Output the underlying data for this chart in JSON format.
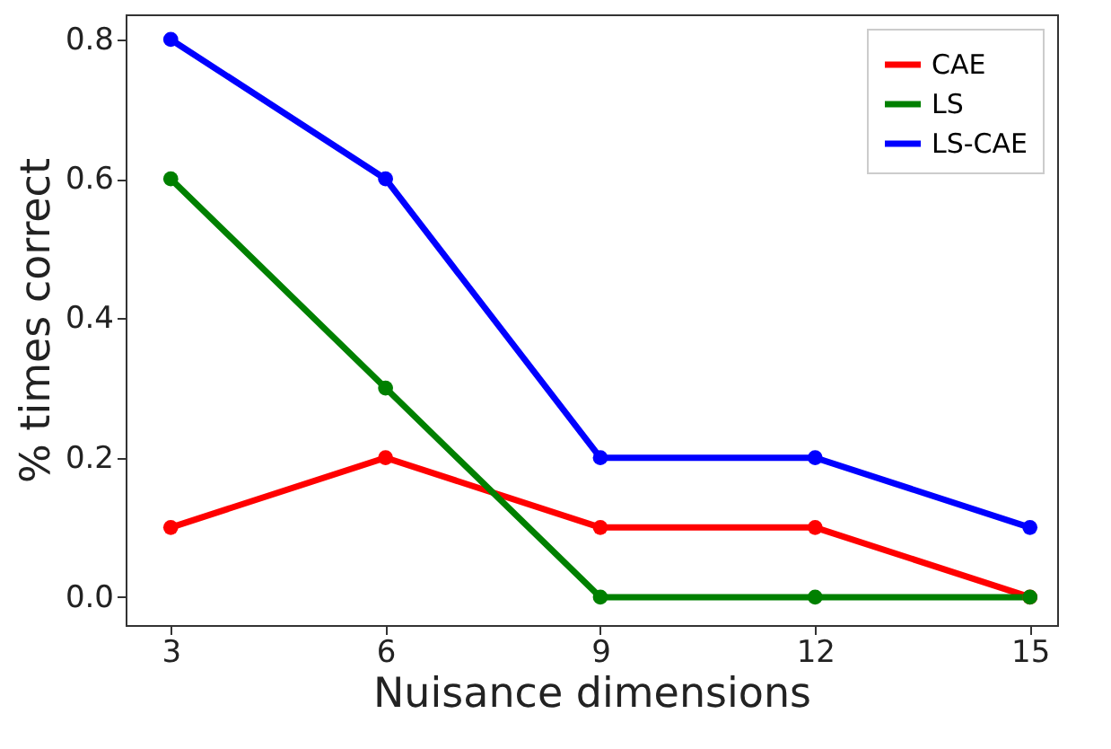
{
  "chart_data": {
    "type": "line",
    "xlabel": "Nuisance dimensions",
    "ylabel": "% times correct",
    "x": [
      3,
      6,
      9,
      12,
      15
    ],
    "series": [
      {
        "name": "CAE",
        "color": "#ff0000",
        "values": [
          0.1,
          0.2,
          0.1,
          0.1,
          0.0
        ]
      },
      {
        "name": "LS",
        "color": "#008000",
        "values": [
          0.6,
          0.3,
          0.0,
          0.0,
          0.0
        ]
      },
      {
        "name": "LS-CAE",
        "color": "#0000ff",
        "values": [
          0.8,
          0.6,
          0.2,
          0.2,
          0.1
        ]
      }
    ],
    "xlim": [
      2.37,
      15.38
    ],
    "xticks": [
      3,
      6,
      9,
      12,
      15
    ],
    "ylim": [
      -0.04,
      0.836
    ],
    "yticks": [
      {
        "value": 0,
        "label": "0.0"
      },
      0.2,
      0.4,
      0.6,
      0.8
    ],
    "grid": false,
    "legend": "top right",
    "marker": "circle",
    "line_style": "solid"
  }
}
